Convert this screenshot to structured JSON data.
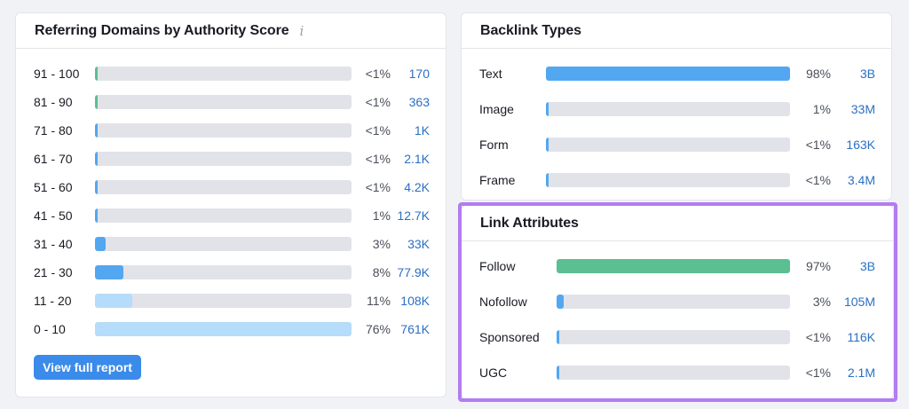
{
  "referring_domains": {
    "title": "Referring Domains by Authority Score",
    "info_icon": "i",
    "button_label": "View full report",
    "rows": [
      {
        "label": "91 - 100",
        "pct": "<1%",
        "count": "170",
        "fill": 0.005
      },
      {
        "label": "81 - 90",
        "pct": "<1%",
        "count": "363",
        "fill": 0.005
      },
      {
        "label": "71 - 80",
        "pct": "<1%",
        "count": "1K",
        "fill": 0.005
      },
      {
        "label": "61 - 70",
        "pct": "<1%",
        "count": "2.1K",
        "fill": 0.005
      },
      {
        "label": "51 - 60",
        "pct": "<1%",
        "count": "4.2K",
        "fill": 0.005
      },
      {
        "label": "41 - 50",
        "pct": "1%",
        "count": "12.7K",
        "fill": 0.01
      },
      {
        "label": "31 - 40",
        "pct": "3%",
        "count": "33K",
        "fill": 0.04
      },
      {
        "label": "21 - 30",
        "pct": "8%",
        "count": "77.9K",
        "fill": 0.11
      },
      {
        "label": "11 - 20",
        "pct": "11%",
        "count": "108K",
        "fill": 0.145
      },
      {
        "label": "0 - 10",
        "pct": "76%",
        "count": "761K",
        "fill": 1.0
      }
    ],
    "colors": [
      "#5bbf91",
      "#5bbf91",
      "#52a7f0",
      "#52a7f0",
      "#52a7f0",
      "#52a7f0",
      "#52a7f0",
      "#52a7f0",
      "#b5dcfa",
      "#b5dcfa"
    ]
  },
  "backlink_types": {
    "title": "Backlink Types",
    "rows": [
      {
        "label": "Text",
        "pct": "98%",
        "count": "3B",
        "fill": 1.0
      },
      {
        "label": "Image",
        "pct": "1%",
        "count": "33M",
        "fill": 0.01
      },
      {
        "label": "Form",
        "pct": "<1%",
        "count": "163K",
        "fill": 0.01
      },
      {
        "label": "Frame",
        "pct": "<1%",
        "count": "3.4M",
        "fill": 0.01
      }
    ],
    "color": "#52a7f0"
  },
  "link_attributes": {
    "title": "Link Attributes",
    "rows": [
      {
        "label": "Follow",
        "pct": "97%",
        "count": "3B",
        "fill": 1.0,
        "color": "#5bbf91"
      },
      {
        "label": "Nofollow",
        "pct": "3%",
        "count": "105M",
        "fill": 0.03,
        "color": "#52a7f0"
      },
      {
        "label": "Sponsored",
        "pct": "<1%",
        "count": "116K",
        "fill": 0.01,
        "color": "#52a7f0"
      },
      {
        "label": "UGC",
        "pct": "<1%",
        "count": "2.1M",
        "fill": 0.01,
        "color": "#52a7f0"
      }
    ],
    "highlight_color": "#b27cf2"
  }
}
